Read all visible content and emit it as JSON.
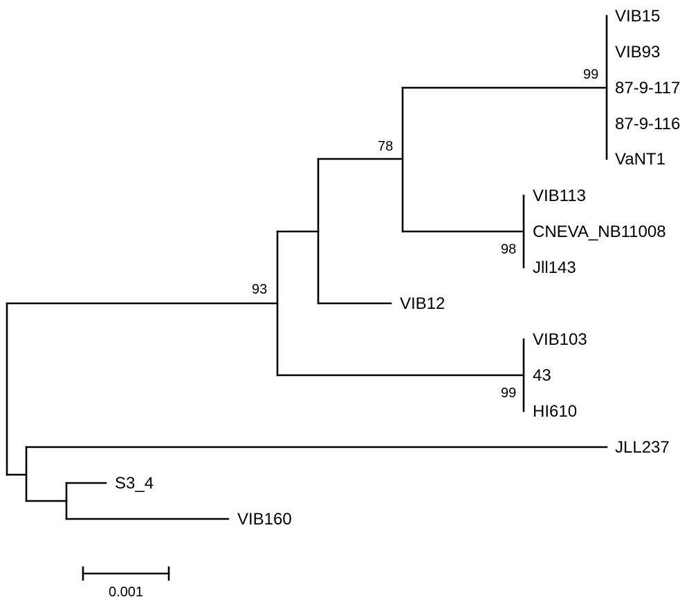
{
  "tree": {
    "leaves": {
      "vib15": "VIB15",
      "vib93": "VIB93",
      "l87_9_117": "87-9-117",
      "l87_9_116": "87-9-116",
      "vant1": "VaNT1",
      "vib113": "VIB113",
      "cneva": "CNEVA_NB11008",
      "jll143": "Jll143",
      "vib12": "VIB12",
      "vib103": "VIB103",
      "l43": "43",
      "hi610": "HI610",
      "jll237": "JLL237",
      "s3_4": "S3_4",
      "vib160": "VIB160"
    },
    "bootstrap": {
      "n99a": "99",
      "n78": "78",
      "n98": "98",
      "n93": "93",
      "n99b": "99"
    },
    "scale_bar": {
      "label": "0.001",
      "value": 0.001
    }
  }
}
